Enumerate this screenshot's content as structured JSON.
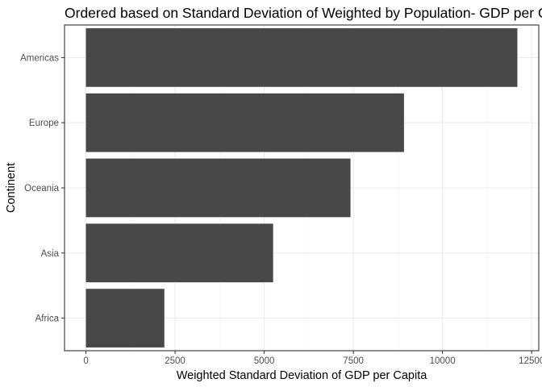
{
  "chart_data": {
    "type": "bar",
    "orientation": "horizontal",
    "title": "Ordered based on Standard Deviation of Weighted by Population- GDP per Capita",
    "xlabel": "Weighted Standard Deviation of GDP per Capita",
    "ylabel": "Continent",
    "categories": [
      "Africa",
      "Asia",
      "Oceania",
      "Europe",
      "Americas"
    ],
    "values": [
      2200,
      5250,
      7420,
      8920,
      12100
    ],
    "xlim": [
      -600,
      12700
    ],
    "xticks": [
      0,
      2500,
      5000,
      7500,
      10000,
      12500
    ],
    "xtick_labels": [
      "0",
      "2500",
      "5000",
      "7500",
      "10000",
      "12500"
    ],
    "grid": true,
    "legend": "none",
    "bar_color": "#484848"
  }
}
